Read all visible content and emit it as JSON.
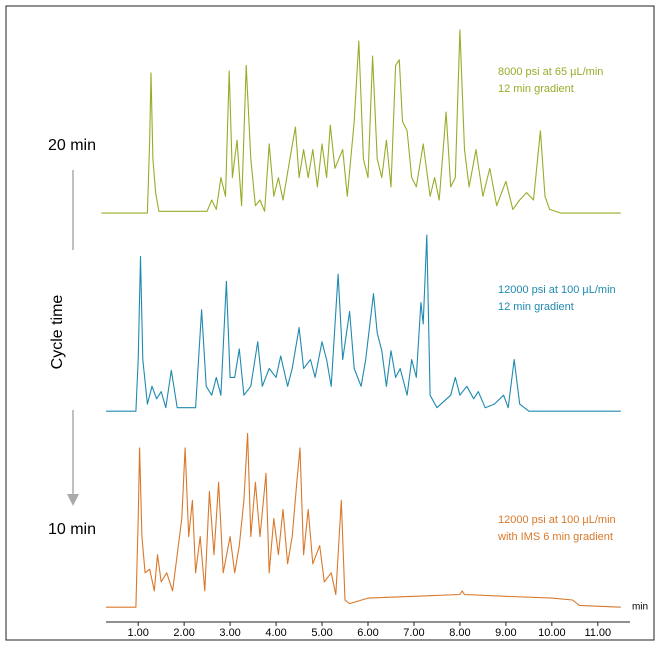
{
  "chart_data": {
    "type": "line",
    "xlabel": "min",
    "xlim": [
      0.3,
      11.7
    ],
    "xticks": [
      {
        "value": 1,
        "label": "1.00"
      },
      {
        "value": 2,
        "label": "2.00"
      },
      {
        "value": 3,
        "label": "3.00"
      },
      {
        "value": 4,
        "label": "4.00"
      },
      {
        "value": 5,
        "label": "5.00"
      },
      {
        "value": 6,
        "label": "6.00"
      },
      {
        "value": 7,
        "label": "7.00"
      },
      {
        "value": 8,
        "label": "8.00"
      },
      {
        "value": 9,
        "label": "9.00"
      },
      {
        "value": 10,
        "label": "10.00"
      },
      {
        "value": 11,
        "label": "11.00"
      }
    ],
    "ylim": [
      0,
      100
    ],
    "annotations": {
      "top": "20 min",
      "axis": "Cycle time",
      "bottom": "10 min"
    },
    "series": [
      {
        "name": "8000 psi at 65 µL/min",
        "note": "12 min gradient",
        "color": "#9aab2a",
        "x": [
          0.2,
          1.2,
          1.25,
          1.28,
          1.32,
          1.38,
          1.45,
          2.5,
          2.6,
          2.7,
          2.8,
          2.9,
          2.98,
          3.05,
          3.15,
          3.25,
          3.35,
          3.45,
          3.55,
          3.65,
          3.75,
          3.85,
          3.95,
          4.05,
          4.15,
          4.3,
          4.42,
          4.5,
          4.6,
          4.7,
          4.8,
          4.9,
          5.0,
          5.1,
          5.18,
          5.28,
          5.45,
          5.55,
          5.7,
          5.8,
          5.9,
          6.0,
          6.1,
          6.2,
          6.3,
          6.4,
          6.5,
          6.6,
          6.68,
          6.75,
          6.85,
          6.95,
          7.05,
          7.2,
          7.35,
          7.45,
          7.55,
          7.7,
          7.8,
          7.9,
          8.0,
          8.1,
          8.2,
          8.35,
          8.5,
          8.65,
          8.8,
          9.0,
          9.15,
          9.3,
          9.45,
          9.6,
          9.75,
          9.85,
          9.95,
          10.2,
          11.5
        ],
        "values": [
          1,
          1,
          40,
          76,
          30,
          12,
          2,
          2,
          8,
          3,
          20,
          10,
          77,
          20,
          40,
          5,
          80,
          30,
          5,
          8,
          2,
          38,
          10,
          20,
          8,
          30,
          47,
          20,
          35,
          20,
          35,
          15,
          38,
          20,
          48,
          25,
          35,
          10,
          50,
          93,
          30,
          20,
          85,
          30,
          20,
          40,
          15,
          80,
          83,
          50,
          45,
          20,
          15,
          38,
          10,
          20,
          8,
          55,
          15,
          20,
          99,
          35,
          15,
          35,
          10,
          25,
          5,
          18,
          3,
          8,
          12,
          8,
          45,
          10,
          3,
          1,
          1
        ]
      },
      {
        "name": "12000 psi at 100 µL/min",
        "note": "12 min gradient",
        "color": "#1f8ab0",
        "x": [
          0.3,
          0.95,
          1.0,
          1.05,
          1.1,
          1.2,
          1.3,
          1.4,
          1.5,
          1.6,
          1.72,
          1.85,
          2.25,
          2.38,
          2.48,
          2.6,
          2.7,
          2.8,
          2.92,
          3.0,
          3.1,
          3.2,
          3.3,
          3.45,
          3.6,
          3.7,
          3.85,
          4.0,
          4.1,
          4.25,
          4.35,
          4.5,
          4.6,
          4.75,
          4.85,
          5.0,
          5.1,
          5.2,
          5.35,
          5.45,
          5.6,
          5.7,
          5.85,
          5.95,
          6.05,
          6.12,
          6.2,
          6.3,
          6.4,
          6.5,
          6.6,
          6.7,
          6.85,
          6.95,
          7.05,
          7.15,
          7.2,
          7.28,
          7.35,
          7.5,
          7.8,
          7.9,
          8.0,
          8.15,
          8.3,
          8.4,
          8.55,
          8.75,
          8.95,
          9.05,
          9.18,
          9.3,
          9.5,
          11.5
        ],
        "values": [
          1,
          1,
          30,
          88,
          30,
          5,
          15,
          8,
          12,
          3,
          24,
          3,
          3,
          58,
          15,
          10,
          20,
          10,
          74,
          20,
          20,
          36,
          10,
          15,
          40,
          15,
          25,
          20,
          32,
          15,
          25,
          48,
          25,
          30,
          20,
          40,
          30,
          15,
          78,
          30,
          57,
          25,
          15,
          30,
          52,
          67,
          45,
          35,
          15,
          35,
          20,
          25,
          10,
          30,
          20,
          62,
          50,
          100,
          10,
          3,
          10,
          20,
          10,
          15,
          8,
          12,
          3,
          5,
          10,
          3,
          30,
          5,
          1,
          1
        ]
      },
      {
        "name": "12000 psi at 100 µL/min",
        "note": "with IMS 6 min gradient",
        "color": "#d9782a",
        "x": [
          0.3,
          0.95,
          1.0,
          1.03,
          1.08,
          1.15,
          1.25,
          1.35,
          1.42,
          1.5,
          1.62,
          1.75,
          1.85,
          1.95,
          2.02,
          2.1,
          2.18,
          2.25,
          2.35,
          2.45,
          2.55,
          2.65,
          2.75,
          2.85,
          3.0,
          3.1,
          3.2,
          3.3,
          3.38,
          3.45,
          3.55,
          3.65,
          3.78,
          3.85,
          3.95,
          4.05,
          4.15,
          4.25,
          4.35,
          4.45,
          4.52,
          4.6,
          4.7,
          4.8,
          4.95,
          5.05,
          5.2,
          5.3,
          5.42,
          5.5,
          5.6,
          6.0,
          7.0,
          8.0,
          8.05,
          8.1,
          9.0,
          10.0,
          10.45,
          10.6,
          11.5
        ],
        "values": [
          1,
          1,
          50,
          89,
          40,
          20,
          22,
          10,
          30,
          15,
          20,
          10,
          30,
          50,
          89,
          40,
          60,
          20,
          40,
          10,
          65,
          30,
          70,
          20,
          40,
          20,
          35,
          60,
          97,
          40,
          70,
          40,
          75,
          20,
          50,
          30,
          55,
          25,
          40,
          70,
          89,
          30,
          55,
          25,
          35,
          15,
          20,
          8,
          60,
          5,
          3,
          6,
          7,
          8,
          10,
          8,
          7,
          6,
          5,
          2,
          1
        ]
      }
    ]
  }
}
